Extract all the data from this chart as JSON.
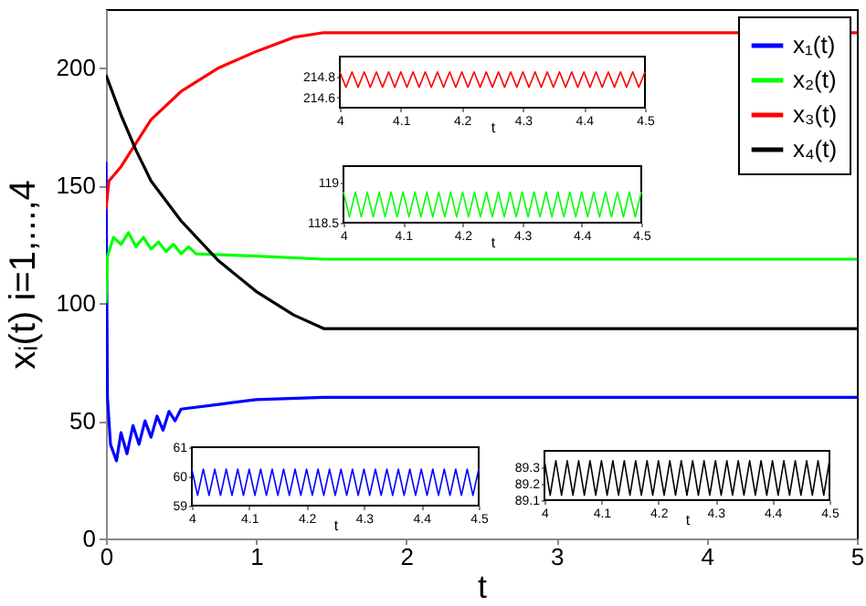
{
  "chart_data": [
    {
      "type": "line",
      "xlabel": "t",
      "ylabel": "xᵢ(t)  i=1,...,4",
      "xlim": [
        0,
        5
      ],
      "xticks": [
        0,
        1,
        2,
        3,
        4,
        5
      ],
      "ylim": [
        0,
        225
      ],
      "yticks": [
        0,
        50,
        100,
        150,
        200
      ],
      "legend": "top right",
      "grid": false,
      "series": [
        {
          "name": "x₁(t)",
          "color": "#0000ff",
          "x": [
            0,
            0.01,
            0.03,
            0.07,
            0.1,
            0.14,
            0.18,
            0.22,
            0.26,
            0.3,
            0.34,
            0.38,
            0.42,
            0.46,
            0.5,
            0.75,
            1,
            1.45,
            5
          ],
          "values": [
            160,
            60,
            40,
            33,
            45,
            36,
            48,
            40,
            50,
            43,
            52,
            46,
            54,
            50,
            55,
            57,
            59,
            60,
            60
          ]
        },
        {
          "name": "x₂(t)",
          "color": "#00ff00",
          "x": [
            0,
            0.01,
            0.05,
            0.1,
            0.15,
            0.2,
            0.25,
            0.3,
            0.35,
            0.4,
            0.45,
            0.5,
            0.55,
            0.6,
            1,
            1.45,
            5
          ],
          "values": [
            100,
            120,
            128,
            125,
            130,
            124,
            128,
            123,
            126,
            122,
            125,
            121,
            124,
            121,
            120,
            118.7,
            118.7
          ]
        },
        {
          "name": "x₃(t)",
          "color": "#ff0000",
          "x": [
            0,
            0.02,
            0.1,
            0.2,
            0.3,
            0.5,
            0.75,
            1,
            1.25,
            1.45,
            5
          ],
          "values": [
            140,
            152,
            158,
            168,
            178,
            190,
            200,
            207,
            213,
            215,
            215
          ]
        },
        {
          "name": "x₄(t)",
          "color": "#000000",
          "x": [
            0,
            0.1,
            0.2,
            0.3,
            0.5,
            0.75,
            1,
            1.25,
            1.45,
            5
          ],
          "values": [
            197,
            180,
            165,
            152,
            135,
            118,
            105,
            95,
            89.2,
            89.2
          ]
        }
      ]
    },
    {
      "type": "line",
      "xlabel": "t",
      "xlim": [
        4,
        4.5
      ],
      "xticks": [
        4,
        4.1,
        4.2,
        4.3,
        4.4,
        4.5
      ],
      "ylim": [
        214.5,
        215
      ],
      "yticks": [
        214.6,
        214.8
      ],
      "x": [
        4,
        4.01,
        4.02,
        4.03,
        4.04,
        4.05,
        4.06,
        4.07,
        4.08,
        4.09,
        4.1,
        4.11,
        4.12,
        4.13,
        4.14,
        4.15,
        4.16,
        4.17,
        4.18,
        4.19,
        4.2,
        4.21,
        4.22,
        4.23,
        4.24,
        4.25,
        4.26,
        4.27,
        4.28,
        4.29,
        4.3,
        4.31,
        4.32,
        4.33,
        4.34,
        4.35,
        4.36,
        4.37,
        4.38,
        4.39,
        4.4,
        4.41,
        4.42,
        4.43,
        4.44,
        4.45,
        4.46,
        4.47,
        4.48,
        4.49,
        4.5
      ],
      "series": [
        {
          "color": "#ff0000",
          "values": [
            214.85,
            214.7,
            214.85,
            214.7,
            214.85,
            214.7,
            214.85,
            214.7,
            214.85,
            214.7,
            214.85,
            214.7,
            214.85,
            214.7,
            214.85,
            214.7,
            214.85,
            214.7,
            214.85,
            214.7,
            214.85,
            214.7,
            214.85,
            214.7,
            214.85,
            214.7,
            214.85,
            214.7,
            214.85,
            214.7,
            214.85,
            214.7,
            214.85,
            214.7,
            214.85,
            214.7,
            214.85,
            214.7,
            214.85,
            214.7,
            214.85,
            214.7,
            214.85,
            214.7,
            214.85,
            214.7,
            214.85,
            214.7,
            214.85,
            214.7,
            214.85
          ]
        }
      ]
    },
    {
      "type": "line",
      "xlabel": "t",
      "xlim": [
        4,
        4.5
      ],
      "xticks": [
        4,
        4.1,
        4.2,
        4.3,
        4.4,
        4.5
      ],
      "ylim": [
        118.5,
        119.2
      ],
      "yticks": [
        118.5,
        119
      ],
      "x": [
        4,
        4.01,
        4.02,
        4.03,
        4.04,
        4.05,
        4.06,
        4.07,
        4.08,
        4.09,
        4.1,
        4.11,
        4.12,
        4.13,
        4.14,
        4.15,
        4.16,
        4.17,
        4.18,
        4.19,
        4.2,
        4.21,
        4.22,
        4.23,
        4.24,
        4.25,
        4.26,
        4.27,
        4.28,
        4.29,
        4.3,
        4.31,
        4.32,
        4.33,
        4.34,
        4.35,
        4.36,
        4.37,
        4.38,
        4.39,
        4.4,
        4.41,
        4.42,
        4.43,
        4.44,
        4.45,
        4.46,
        4.47,
        4.48,
        4.49,
        4.5
      ],
      "series": [
        {
          "color": "#00ff00",
          "values": [
            118.88,
            118.57,
            118.88,
            118.57,
            118.88,
            118.57,
            118.88,
            118.57,
            118.88,
            118.57,
            118.88,
            118.57,
            118.88,
            118.57,
            118.88,
            118.57,
            118.88,
            118.57,
            118.88,
            118.57,
            118.88,
            118.57,
            118.88,
            118.57,
            118.88,
            118.57,
            118.88,
            118.57,
            118.88,
            118.57,
            118.88,
            118.57,
            118.88,
            118.57,
            118.88,
            118.57,
            118.88,
            118.57,
            118.88,
            118.57,
            118.88,
            118.57,
            118.88,
            118.57,
            118.88,
            118.57,
            118.88,
            118.57,
            118.88,
            118.57,
            118.88
          ]
        }
      ]
    },
    {
      "type": "line",
      "xlabel": "t",
      "xlim": [
        4,
        4.5
      ],
      "xticks": [
        4,
        4.1,
        4.2,
        4.3,
        4.4,
        4.5
      ],
      "ylim": [
        59,
        61
      ],
      "yticks": [
        59,
        60,
        61
      ],
      "x": [
        4,
        4.01,
        4.02,
        4.03,
        4.04,
        4.05,
        4.06,
        4.07,
        4.08,
        4.09,
        4.1,
        4.11,
        4.12,
        4.13,
        4.14,
        4.15,
        4.16,
        4.17,
        4.18,
        4.19,
        4.2,
        4.21,
        4.22,
        4.23,
        4.24,
        4.25,
        4.26,
        4.27,
        4.28,
        4.29,
        4.3,
        4.31,
        4.32,
        4.33,
        4.34,
        4.35,
        4.36,
        4.37,
        4.38,
        4.39,
        4.4,
        4.41,
        4.42,
        4.43,
        4.44,
        4.45,
        4.46,
        4.47,
        4.48,
        4.49,
        4.5
      ],
      "series": [
        {
          "color": "#0000ff",
          "values": [
            60.25,
            59.35,
            60.25,
            59.35,
            60.25,
            59.35,
            60.25,
            59.35,
            60.25,
            59.35,
            60.25,
            59.35,
            60.25,
            59.35,
            60.25,
            59.35,
            60.25,
            59.35,
            60.25,
            59.35,
            60.25,
            59.35,
            60.25,
            59.35,
            60.25,
            59.35,
            60.25,
            59.35,
            60.25,
            59.35,
            60.25,
            59.35,
            60.25,
            59.35,
            60.25,
            59.35,
            60.25,
            59.35,
            60.25,
            59.35,
            60.25,
            59.35,
            60.25,
            59.35,
            60.25,
            59.35,
            60.25,
            59.35,
            60.25,
            59.35,
            60.25
          ]
        }
      ]
    },
    {
      "type": "line",
      "xlabel": "t",
      "xlim": [
        4,
        4.5
      ],
      "xticks": [
        4,
        4.1,
        4.2,
        4.3,
        4.4,
        4.5
      ],
      "ylim": [
        89.1,
        89.4
      ],
      "yticks": [
        89.1,
        89.2,
        89.3
      ],
      "x": [
        4,
        4.01,
        4.02,
        4.03,
        4.04,
        4.05,
        4.06,
        4.07,
        4.08,
        4.09,
        4.1,
        4.11,
        4.12,
        4.13,
        4.14,
        4.15,
        4.16,
        4.17,
        4.18,
        4.19,
        4.2,
        4.21,
        4.22,
        4.23,
        4.24,
        4.25,
        4.26,
        4.27,
        4.28,
        4.29,
        4.3,
        4.31,
        4.32,
        4.33,
        4.34,
        4.35,
        4.36,
        4.37,
        4.38,
        4.39,
        4.4,
        4.41,
        4.42,
        4.43,
        4.44,
        4.45,
        4.46,
        4.47,
        4.48,
        4.49,
        4.5
      ],
      "series": [
        {
          "color": "#000000",
          "values": [
            89.34,
            89.13,
            89.34,
            89.13,
            89.34,
            89.13,
            89.34,
            89.13,
            89.34,
            89.13,
            89.34,
            89.13,
            89.34,
            89.13,
            89.34,
            89.13,
            89.34,
            89.13,
            89.34,
            89.13,
            89.34,
            89.13,
            89.34,
            89.13,
            89.34,
            89.13,
            89.34,
            89.13,
            89.34,
            89.13,
            89.34,
            89.13,
            89.34,
            89.13,
            89.34,
            89.13,
            89.34,
            89.13,
            89.34,
            89.13,
            89.34,
            89.13,
            89.34,
            89.13,
            89.34,
            89.13,
            89.34,
            89.13,
            89.34,
            89.13,
            89.34
          ]
        }
      ]
    }
  ]
}
